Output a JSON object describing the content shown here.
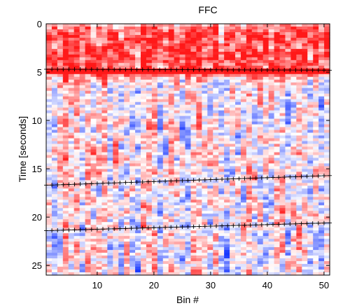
{
  "chart_data": {
    "type": "heatmap",
    "title": "FFC",
    "xlabel": "Bin #",
    "ylabel": "Time [seconds]",
    "xlim": [
      1,
      51
    ],
    "ylim": [
      26,
      0
    ],
    "y_reversed": true,
    "x_ticks": [
      10,
      20,
      30,
      40,
      50
    ],
    "y_ticks": [
      0,
      5,
      10,
      15,
      20,
      25
    ],
    "colormap": {
      "low": "#1a3bff",
      "mid": "#ffffff",
      "high": "#ff1a1a"
    },
    "grid": false,
    "legend": "none",
    "marker_series": [
      {
        "marker": "+",
        "x_start": 1,
        "y_start": 4.7,
        "x_end": 51,
        "y_end": 4.8
      },
      {
        "marker": "+",
        "x_start": 1,
        "y_start": 16.7,
        "x_end": 51,
        "y_end": 15.7
      },
      {
        "marker": "+",
        "x_start": 1,
        "y_start": 21.4,
        "x_end": 51,
        "y_end": 20.6
      }
    ]
  }
}
